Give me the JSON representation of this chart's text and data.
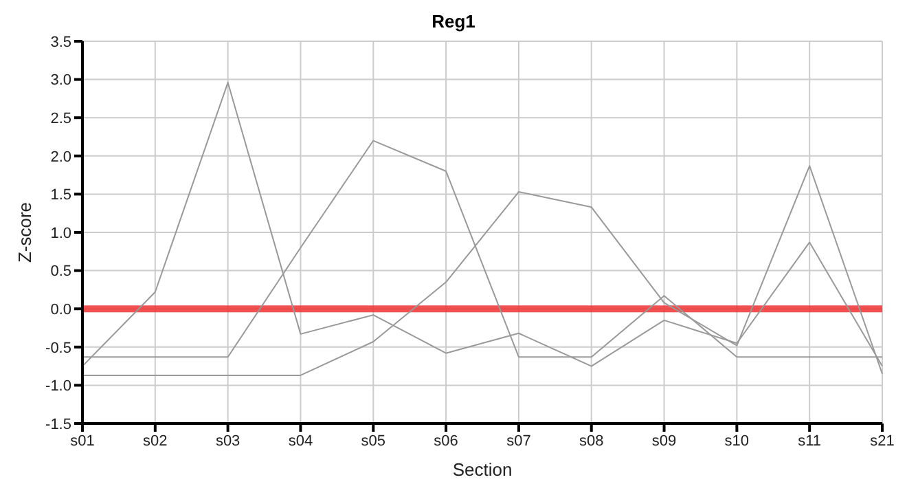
{
  "chart_data": {
    "type": "line",
    "title": "Reg1",
    "xlabel": "Section",
    "ylabel": "Z-score",
    "categories": [
      "s01",
      "s02",
      "s03",
      "s04",
      "s05",
      "s06",
      "s07",
      "s08",
      "s09",
      "s10",
      "s11",
      "s21"
    ],
    "series": [
      {
        "color": "#999999",
        "values": [
          -0.75,
          0.22,
          2.96,
          -0.33,
          -0.08,
          -0.58,
          -0.32,
          -0.75,
          -0.15,
          -0.45,
          0.87,
          -0.75
        ]
      },
      {
        "color": "#999999",
        "values": [
          -0.63,
          -0.63,
          -0.63,
          0.8,
          2.2,
          1.8,
          -0.63,
          -0.63,
          0.17,
          -0.63,
          -0.63,
          -0.63
        ]
      },
      {
        "color": "#999999",
        "values": [
          -0.87,
          -0.87,
          -0.87,
          -0.87,
          -0.43,
          0.35,
          1.53,
          1.33,
          0.08,
          -0.48,
          1.87,
          -0.85
        ]
      }
    ],
    "ylim": [
      -1.5,
      3.5
    ],
    "yticks": [
      {
        "value": -1.5,
        "label": "-1.5"
      },
      {
        "value": -1,
        "label": "-1.0"
      },
      {
        "value": -0.5,
        "label": "-0.5"
      },
      {
        "value": 0,
        "label": "0.0"
      },
      {
        "value": 0.5,
        "label": "0.5"
      },
      {
        "value": 1,
        "label": "1.0"
      },
      {
        "value": 1.5,
        "label": "1.5"
      },
      {
        "value": 2,
        "label": "2.0"
      },
      {
        "value": 2.5,
        "label": "2.5"
      },
      {
        "value": 3,
        "label": "3.0"
      },
      {
        "value": 3.5,
        "label": "3.5"
      }
    ],
    "ref_lines": [
      {
        "axis": "y",
        "value": 0,
        "color": "#ee3333"
      }
    ],
    "grid": true,
    "legend": false,
    "marker": "none",
    "line_style": "solid"
  }
}
